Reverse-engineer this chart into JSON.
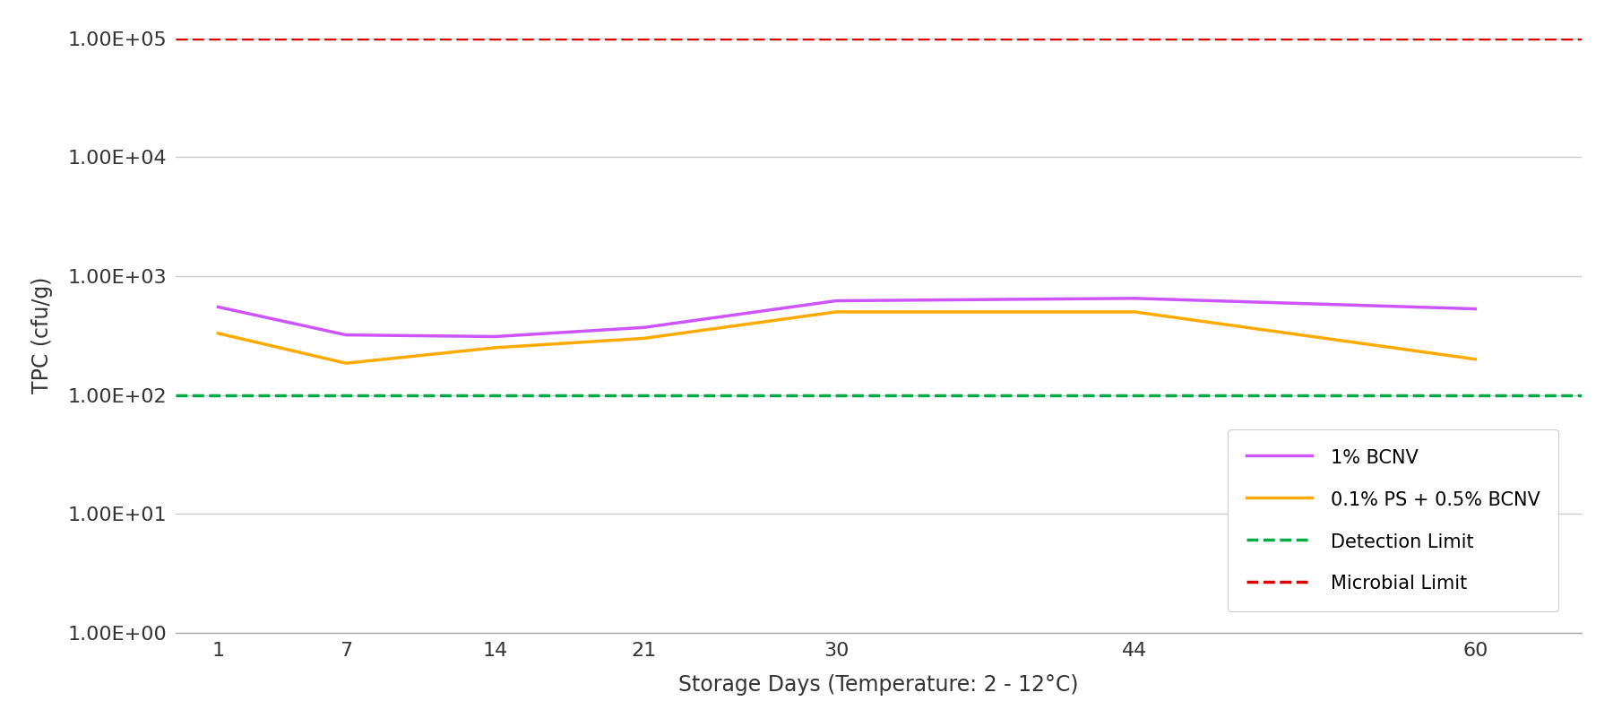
{
  "x_days": [
    1,
    7,
    14,
    21,
    30,
    44,
    60
  ],
  "bcnv_1pct": [
    550,
    320,
    310,
    370,
    620,
    650,
    530
  ],
  "ps_bcnv": [
    330,
    185,
    250,
    300,
    500,
    500,
    200
  ],
  "detection_limit": 100,
  "microbial_limit": 100000,
  "xlabel": "Storage Days (Temperature: 2 - 12°C)",
  "ylabel": "TPC (cfu/g)",
  "ylim_low": 1,
  "ylim_high": 100000,
  "color_bcnv": "#cc55ff",
  "color_ps_bcnv": "#ffaa00",
  "color_detection": "#00aa44",
  "color_microbial": "#dd0000",
  "color_grid": "#cccccc",
  "color_background": "#ffffff",
  "legend_bcnv": "1% BCNV",
  "legend_ps_bcnv": "0.1% PS + 0.5% BCNV",
  "legend_detection": "Detection Limit",
  "legend_microbial": "Microbial Limit",
  "x_ticks": [
    1,
    7,
    14,
    21,
    30,
    44,
    60
  ],
  "y_ticks": [
    1,
    10,
    100,
    1000,
    10000,
    100000
  ]
}
